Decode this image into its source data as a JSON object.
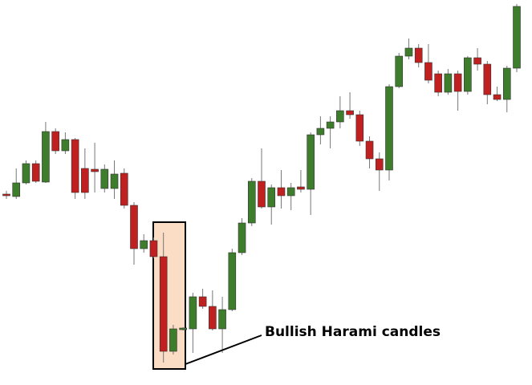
{
  "chart_data": {
    "type": "candlestick",
    "annotation": "Bullish Harami candles",
    "up_color": "#3e7d2c",
    "down_color": "#c0201f",
    "ylim": [
      0,
      480
    ],
    "open": [
      238,
      235,
      252,
      276,
      253,
      316,
      292,
      306,
      270,
      269,
      245,
      245,
      264,
      224,
      170,
      180,
      160,
      42,
      69,
      70,
      110,
      98,
      70,
      94,
      165,
      202,
      254,
      222,
      246,
      236,
      247,
      244,
      312,
      320,
      328,
      342,
      337,
      304,
      282,
      268,
      372,
      410,
      420,
      402,
      388,
      365,
      388,
      366,
      408,
      400,
      362,
      356,
      395
    ],
    "high": [
      242,
      270,
      280,
      280,
      328,
      320,
      315,
      308,
      295,
      302,
      275,
      280,
      270,
      228,
      188,
      184,
      190,
      75,
      72,
      115,
      120,
      118,
      110,
      170,
      208,
      258,
      295,
      250,
      268,
      252,
      268,
      315,
      335,
      335,
      360,
      365,
      342,
      310,
      290,
      375,
      414,
      432,
      425,
      425,
      392,
      394,
      392,
      410,
      420,
      404,
      372,
      398,
      475
    ],
    "low": [
      232,
      232,
      250,
      252,
      252,
      288,
      288,
      232,
      232,
      240,
      240,
      232,
      220,
      150,
      165,
      158,
      28,
      38,
      68,
      40,
      95,
      68,
      40,
      92,
      162,
      198,
      220,
      200,
      220,
      218,
      240,
      212,
      300,
      295,
      320,
      332,
      298,
      270,
      242,
      255,
      370,
      406,
      396,
      376,
      360,
      362,
      342,
      362,
      392,
      350,
      354,
      340,
      390
    ],
    "close": [
      236,
      252,
      276,
      254,
      316,
      292,
      306,
      240,
      240,
      266,
      269,
      263,
      224,
      170,
      180,
      160,
      42,
      70,
      71,
      110,
      98,
      70,
      94,
      165,
      202,
      254,
      222,
      246,
      236,
      246,
      244,
      312,
      320,
      328,
      342,
      337,
      304,
      282,
      268,
      372,
      410,
      420,
      402,
      380,
      365,
      388,
      366,
      408,
      400,
      362,
      356,
      395,
      472
    ]
  }
}
